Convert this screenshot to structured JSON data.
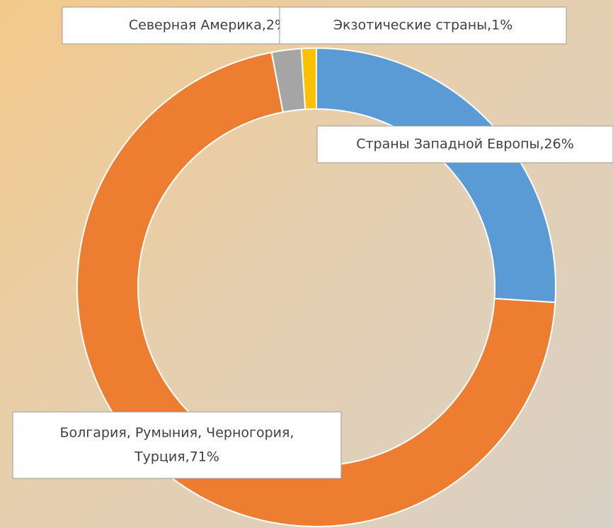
{
  "chart_data": {
    "type": "donut",
    "labels": [
      [
        "Страны Западной Европы,26%"
      ],
      [
        "Болгария, Румыния, Черногория,",
        "Турция,71%"
      ],
      [
        "Северная Америка,2%"
      ],
      [
        "Экзотические страны,1%"
      ]
    ],
    "values": [
      26,
      71,
      2,
      1
    ],
    "colors": [
      "#5b9bd5",
      "#ed7d31",
      "#a5a5a5",
      "#ffc000"
    ]
  }
}
